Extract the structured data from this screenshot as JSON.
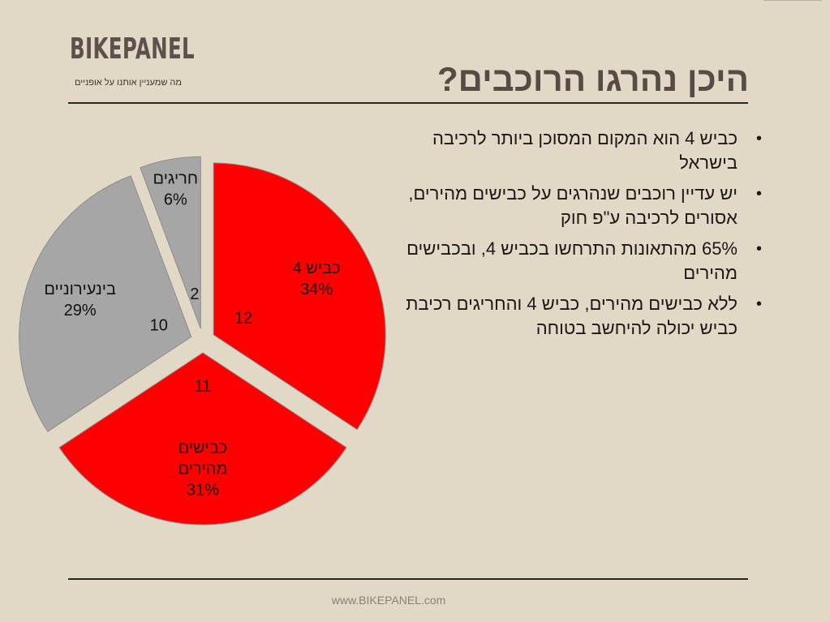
{
  "brand": {
    "name": "BIKEPANEL",
    "tagline": "מה שמעניין אותנו על אופניים"
  },
  "title": "היכן נהרגו הרוכבים?",
  "bullets": [
    "כביש 4 הוא המקום המסוכן ביותר לרכיבה בישראל",
    "יש עדיין רוכבים שנהרגים על כבישים מהירים, אסורים לרכיבה ע\"פ חוק",
    "65% מהתאונות התרחשו בכביש 4, ובכבישים מהירים",
    "ללא כבישים מהירים, כביש 4 והחריגים רכיבת כביש יכולה להיחשב בטוחה"
  ],
  "footer": "www.BIKEPANEL.com",
  "chart_data": {
    "type": "pie",
    "categories": [
      "כביש 4",
      "כבישים מהירים",
      "בינעירוניים",
      "חריגים"
    ],
    "values": [
      12,
      11,
      10,
      2
    ],
    "percent_labels": [
      "34%",
      "31%",
      "29%",
      "6%"
    ],
    "category_label_lines": [
      [
        "כביש 4"
      ],
      [
        "כבישים",
        "מהירים"
      ],
      [
        "בינעירוניים"
      ],
      [
        "חריגים"
      ]
    ],
    "colors": [
      "#ff0000",
      "#ff0000",
      "#a6a6a6",
      "#a6a6a6"
    ],
    "slice_outline": "#8c8c8c",
    "exploded": true,
    "start_angle": "12 o'clock",
    "direction": "clockwise"
  }
}
